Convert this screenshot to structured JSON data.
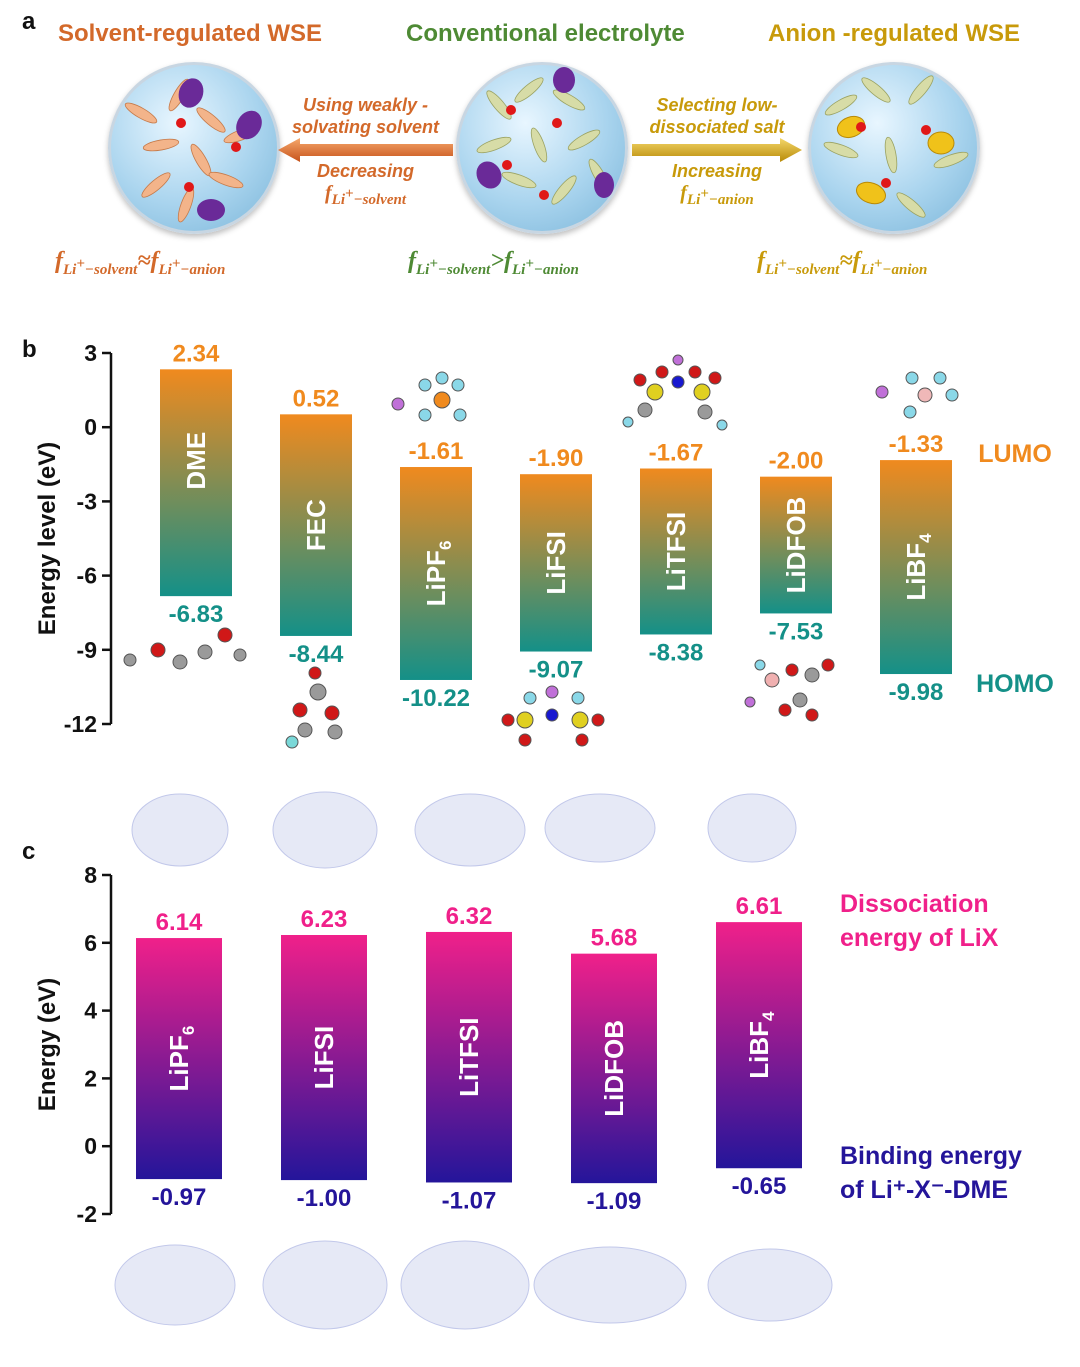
{
  "panel_a": {
    "label": "a",
    "left_title": "Solvent-regulated WSE",
    "center_title": "Conventional electrolyte",
    "right_title": "Anion -regulated WSE",
    "left_arrow_top": [
      "Using weakly -",
      "solvating solvent"
    ],
    "left_arrow_bottom": [
      "Decreasing"
    ],
    "right_arrow_top": [
      "Selecting low-",
      "dissociated salt"
    ],
    "right_arrow_bottom": [
      "Increasing"
    ],
    "f_symbol": "f",
    "li_sub": "Li",
    "plus": "+",
    "solvent": "−solvent",
    "anion": "−anion",
    "approx": "≈",
    "greater": ">",
    "colors": {
      "solvent": "#d3692a",
      "conventional": "#4e8a34",
      "anion": "#c89a0a"
    }
  },
  "chart_data": [
    {
      "type": "bar",
      "panel": "b",
      "ylabel": "Energy level (eV)",
      "ylim": [
        -12,
        3
      ],
      "yticks": [
        3,
        0,
        -3,
        -6,
        -9,
        -12
      ],
      "categories": [
        "DME",
        "FEC",
        "LiPF6",
        "LiFSI",
        "LiTFSI",
        "LiDFOB",
        "LiBF4"
      ],
      "subscripts": [
        "",
        "",
        "6",
        "",
        "",
        "",
        "4"
      ],
      "series": [
        {
          "name": "LUMO",
          "values": [
            2.34,
            0.52,
            -1.61,
            -1.9,
            -1.67,
            -2.0,
            -1.33
          ]
        },
        {
          "name": "HOMO",
          "values": [
            -6.83,
            -8.44,
            -10.22,
            -9.07,
            -8.38,
            -7.53,
            -9.98
          ]
        }
      ],
      "top_labels": [
        "2.34",
        "0.52",
        "-1.61",
        "-1.90",
        "-1.67",
        "-2.00",
        "-1.33"
      ],
      "bottom_labels": [
        "-6.83",
        "-8.44",
        "-10.22",
        "-9.07",
        "-8.38",
        "-7.53",
        "-9.98"
      ],
      "legend": [
        "LUMO",
        "HOMO"
      ],
      "colors": {
        "top": "#f08a1e",
        "bottom": "#149088"
      }
    },
    {
      "type": "bar",
      "panel": "c",
      "ylabel": "Energy (eV)",
      "ylim": [
        -2,
        8
      ],
      "yticks": [
        8,
        6,
        4,
        2,
        0,
        -2
      ],
      "categories": [
        "LiPF6",
        "LiFSI",
        "LiTFSI",
        "LiDFOB",
        "LiBF4"
      ],
      "subscripts": [
        "6",
        "",
        "",
        "",
        "4"
      ],
      "series": [
        {
          "name": "Dissociation energy of LiX",
          "values": [
            6.14,
            6.23,
            6.32,
            5.68,
            6.61
          ]
        },
        {
          "name": "Binding energy of Li+-X--DME",
          "values": [
            -0.97,
            -1.0,
            -1.07,
            -1.09,
            -0.65
          ]
        }
      ],
      "top_labels": [
        "6.14",
        "6.23",
        "6.32",
        "5.68",
        "6.61"
      ],
      "bottom_labels": [
        "-0.97",
        "-1.00",
        "-1.07",
        "-1.09",
        "-0.65"
      ],
      "legend_top": [
        "Dissociation",
        "energy of LiX"
      ],
      "legend_bottom": [
        "Binding energy",
        "of Li⁺-X⁻-DME"
      ],
      "colors": {
        "top": "#f0208a",
        "bottom": "#24159a"
      }
    }
  ],
  "panel_labels": {
    "b": "b",
    "c": "c"
  }
}
